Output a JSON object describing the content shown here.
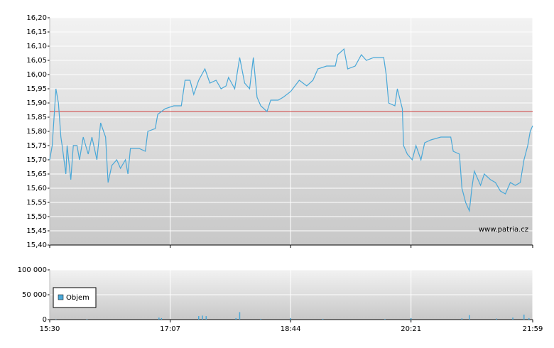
{
  "chart_data": [
    {
      "type": "line",
      "x": [
        930,
        932,
        935,
        937,
        939,
        940,
        943,
        944,
        947,
        949,
        952,
        954,
        957,
        961,
        964,
        968,
        971,
        975,
        977,
        980,
        984,
        987,
        991,
        993,
        995,
        1002,
        1007,
        1009,
        1015,
        1017,
        1023,
        1030,
        1036,
        1039,
        1043,
        1046,
        1050,
        1055,
        1059,
        1064,
        1068,
        1072,
        1074,
        1079,
        1083,
        1087,
        1091,
        1094,
        1097,
        1100,
        1105,
        1108,
        1114,
        1118,
        1124,
        1131,
        1137,
        1142,
        1146,
        1153,
        1160,
        1162,
        1167,
        1170,
        1176,
        1181,
        1185,
        1191,
        1199,
        1201,
        1203,
        1208,
        1210,
        1214,
        1215,
        1218,
        1222,
        1225,
        1229,
        1232,
        1237,
        1245,
        1253,
        1255,
        1260,
        1262,
        1265,
        1268,
        1270,
        1272,
        1277,
        1280,
        1285,
        1289,
        1293,
        1297,
        1301,
        1305,
        1309,
        1312,
        1315,
        1317,
        1319
      ],
      "values": [
        15.7,
        15.75,
        15.95,
        15.9,
        15.78,
        15.75,
        15.65,
        15.75,
        15.63,
        15.75,
        15.75,
        15.7,
        15.78,
        15.72,
        15.78,
        15.7,
        15.83,
        15.78,
        15.62,
        15.68,
        15.7,
        15.67,
        15.7,
        15.65,
        15.74,
        15.74,
        15.73,
        15.8,
        15.81,
        15.86,
        15.88,
        15.89,
        15.89,
        15.98,
        15.98,
        15.93,
        15.98,
        16.02,
        15.97,
        15.98,
        15.95,
        15.96,
        15.99,
        15.95,
        16.06,
        15.97,
        15.95,
        16.06,
        15.92,
        15.89,
        15.87,
        15.91,
        15.91,
        15.92,
        15.94,
        15.98,
        15.96,
        15.98,
        16.02,
        16.03,
        16.03,
        16.07,
        16.09,
        16.02,
        16.03,
        16.07,
        16.05,
        16.06,
        16.06,
        16.0,
        15.9,
        15.89,
        15.95,
        15.88,
        15.75,
        15.72,
        15.7,
        15.75,
        15.7,
        15.76,
        15.77,
        15.78,
        15.78,
        15.73,
        15.72,
        15.6,
        15.55,
        15.52,
        15.6,
        15.66,
        15.61,
        15.65,
        15.63,
        15.62,
        15.59,
        15.58,
        15.62,
        15.61,
        15.62,
        15.7,
        15.75,
        15.8,
        15.82
      ],
      "color": "#4aa8d8",
      "reference_line": {
        "value": 15.87,
        "color": "#d04040"
      },
      "annotation": "www.patria.cz",
      "xlim": [
        930,
        1319
      ],
      "ylim": [
        15.4,
        16.2
      ],
      "yticks": [
        {
          "value": 15.4,
          "label": "15,40"
        },
        {
          "value": 15.45,
          "label": "15,45"
        },
        {
          "value": 15.5,
          "label": "15,50"
        },
        {
          "value": 15.55,
          "label": "15,55"
        },
        {
          "value": 15.6,
          "label": "15,60"
        },
        {
          "value": 15.65,
          "label": "15,65"
        },
        {
          "value": 15.7,
          "label": "15,70"
        },
        {
          "value": 15.75,
          "label": "15,75"
        },
        {
          "value": 15.8,
          "label": "15,80"
        },
        {
          "value": 15.85,
          "label": "15,85"
        },
        {
          "value": 15.9,
          "label": "15,90"
        },
        {
          "value": 15.95,
          "label": "15,95"
        },
        {
          "value": 16.0,
          "label": "16,00"
        },
        {
          "value": 16.05,
          "label": "16,05"
        },
        {
          "value": 16.1,
          "label": "16,10"
        },
        {
          "value": 16.15,
          "label": "16,15"
        },
        {
          "value": 16.2,
          "label": "16,20"
        }
      ],
      "grid": true
    },
    {
      "type": "bar",
      "series": [
        {
          "name": "Objem",
          "color": "#4aa8d8",
          "x": [
            935,
            960,
            1018,
            1020,
            1050,
            1053,
            1056,
            1080,
            1083,
            1100,
            1124,
            1150,
            1200,
            1221,
            1262,
            1268,
            1290,
            1303,
            1312,
            1316
          ],
          "values": [
            500,
            800,
            4000,
            3000,
            7000,
            8000,
            7000,
            3000,
            15000,
            1500,
            3000,
            1500,
            1200,
            3000,
            2500,
            9000,
            2000,
            4000,
            10000,
            3000
          ]
        }
      ],
      "legend": "bottom-left",
      "xlim": [
        930,
        1319
      ],
      "xticks": [
        {
          "value": 930,
          "label": "15:30"
        },
        {
          "value": 1027,
          "label": "17:07"
        },
        {
          "value": 1124,
          "label": "18:44"
        },
        {
          "value": 1221,
          "label": "20:21"
        },
        {
          "value": 1319,
          "label": "21:59"
        }
      ],
      "ylim": [
        0,
        100000
      ],
      "yticks": [
        0,
        {
          "value": 50000,
          "label": "50 000"
        },
        {
          "value": 100000,
          "label": "100 000"
        }
      ],
      "grid": true
    }
  ]
}
